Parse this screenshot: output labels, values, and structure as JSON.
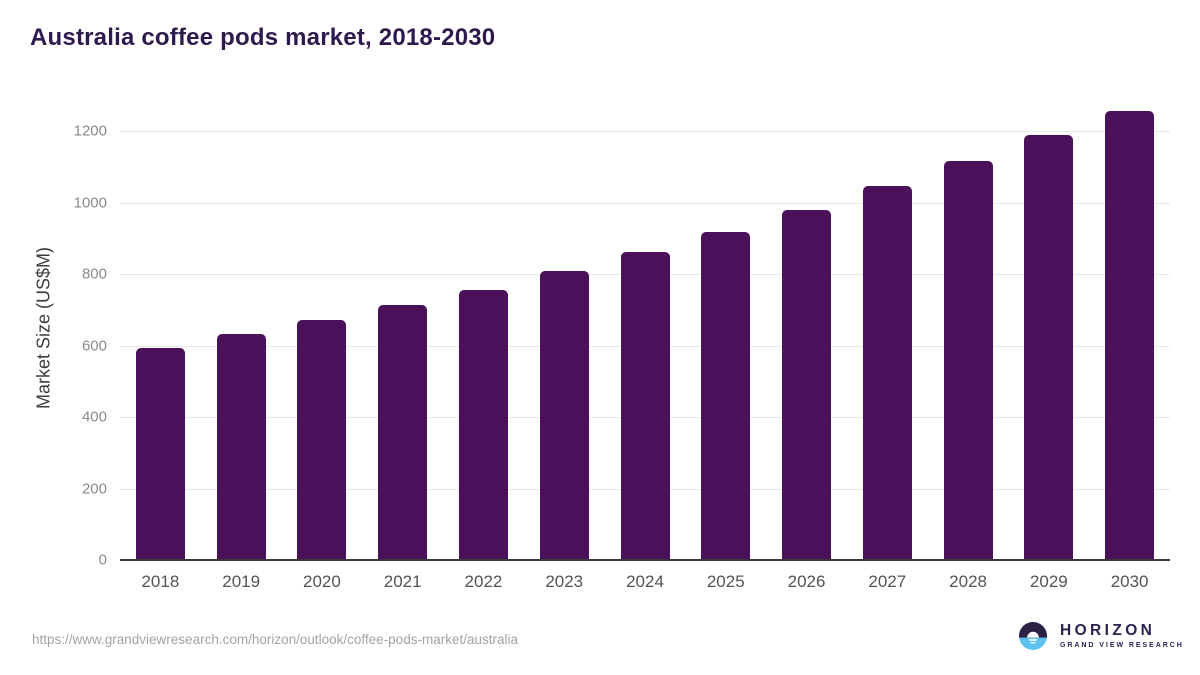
{
  "title": "Australia coffee pods market, 2018-2030",
  "chart_data": {
    "type": "bar",
    "title": "Australia coffee pods market, 2018-2030",
    "categories": [
      "2018",
      "2019",
      "2020",
      "2021",
      "2022",
      "2023",
      "2024",
      "2025",
      "2026",
      "2027",
      "2028",
      "2029",
      "2030"
    ],
    "values": [
      595,
      633,
      672,
      713,
      757,
      808,
      862,
      917,
      980,
      1048,
      1117,
      1191,
      1258
    ],
    "xlabel": "",
    "ylabel": "Market Size (US$M)",
    "ylim": [
      0,
      1300
    ],
    "yticks": [
      0,
      200,
      400,
      600,
      800,
      1000,
      1200
    ],
    "grid": "horizontal",
    "legend": "none",
    "bar_color": "#4a1059"
  },
  "colors": {
    "bar": "#4a1059",
    "title_text": "#2e1a4d",
    "axis_line": "#3a3a3a",
    "gridline": "#e9e9e9",
    "x_tick_text": "#545454",
    "y_tick_text": "#8a8a8a",
    "url_text": "#a3a3a3",
    "logo_dark": "#2d2145",
    "logo_blue": "#5cc3f0",
    "logo_text": "#2c2150"
  },
  "footer": {
    "source_url": "https://www.grandviewresearch.com/horizon/outlook/coffee-pods-market/australia",
    "logo": {
      "brand": "HORIZON",
      "sub_brand": "GRAND VIEW RESEARCH"
    }
  }
}
